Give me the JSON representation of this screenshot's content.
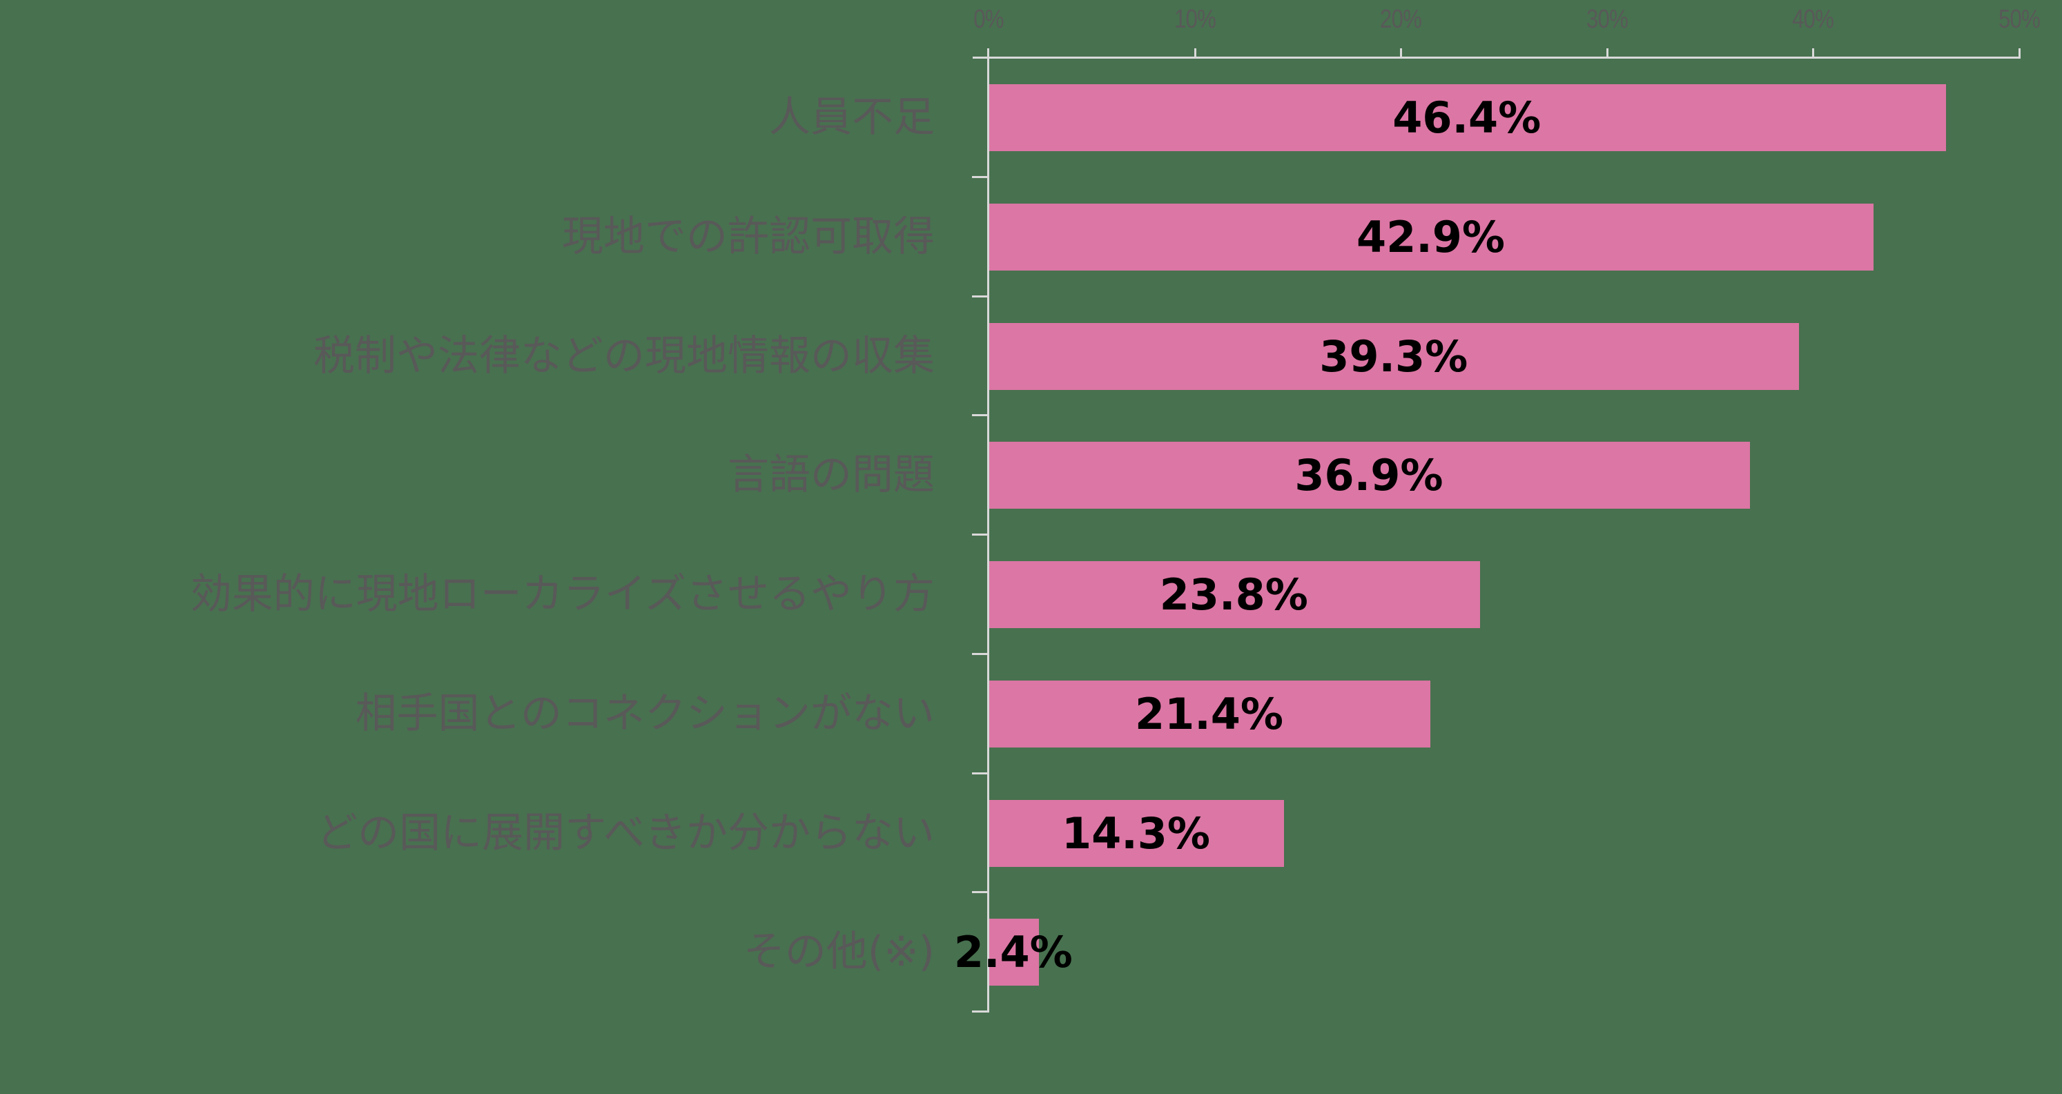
{
  "chart_data": {
    "type": "bar",
    "orientation": "horizontal",
    "title": "",
    "xlabel": "",
    "ylabel": "",
    "xlim": [
      0,
      50
    ],
    "x_ticks": [
      "0%",
      "10%",
      "20%",
      "30%",
      "40%",
      "50%"
    ],
    "x_axis_position": "top",
    "grid": false,
    "legend": null,
    "categories": [
      "人員不足",
      "現地での許認可取得",
      "税制や法律などの現地情報の収集",
      "言語の問題",
      "効果的に現地ローカライズさせるやり方",
      "相手国とのコネクションがない",
      "どの国に展開すべきか分からない",
      "その他(※)"
    ],
    "values": [
      46.4,
      42.9,
      39.3,
      36.9,
      23.8,
      21.4,
      14.3,
      2.4
    ],
    "value_labels": [
      "46.4%",
      "42.9%",
      "39.3%",
      "36.9%",
      "23.8%",
      "21.4%",
      "14.3%",
      "2.4%"
    ],
    "unit": "%"
  },
  "colors": {
    "background": "#48714F",
    "bar": "#DC76A4",
    "axis": "#D9D9D9",
    "category_text": "#595959",
    "value_text": "#000000"
  }
}
